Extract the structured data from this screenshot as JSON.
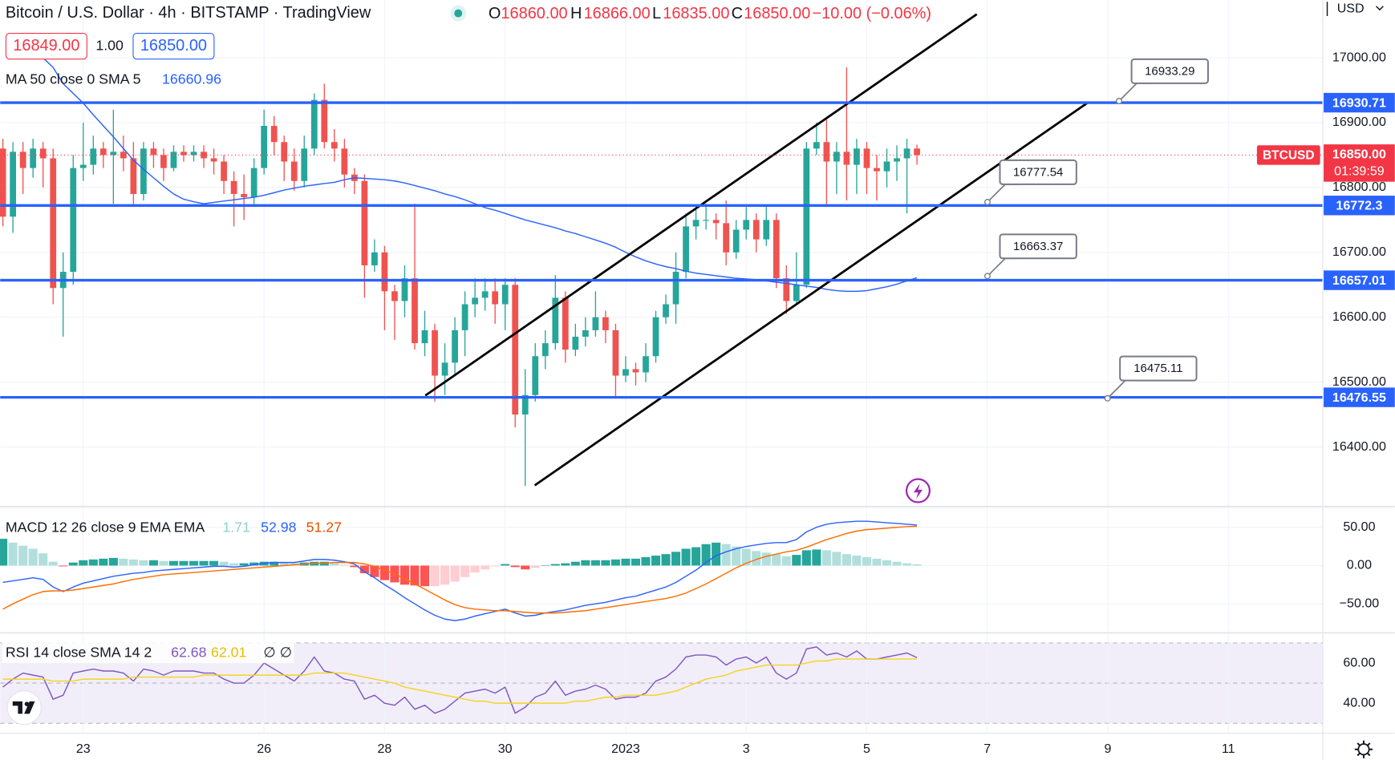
{
  "chart_data": {
    "type": "candlestick",
    "title": "Bitcoin / U.S. Dollar · 4h · BITSTAMP · TradingView",
    "ohlc_legend": [
      {
        "key": "O",
        "value": "16860.00"
      },
      {
        "key": "H",
        "value": "16866.00"
      },
      {
        "key": "L",
        "value": "16835.00"
      },
      {
        "key": "C",
        "value": "16850.00"
      }
    ],
    "change": "−10.00 (−0.06%)",
    "quote": {
      "bid": "16849.00",
      "size": "1.00",
      "ask": "16850.00"
    },
    "currency": "USD",
    "xlim": [
      -0.27,
      131.4
    ],
    "xticks": [
      {
        "value": 8,
        "label": "23"
      },
      {
        "value": 26,
        "label": "26"
      },
      {
        "value": 38,
        "label": "28"
      },
      {
        "value": 50,
        "label": "30"
      },
      {
        "value": 62,
        "label": "2023"
      },
      {
        "value": 74,
        "label": "3"
      },
      {
        "value": 86,
        "label": "5"
      },
      {
        "value": 98,
        "label": "7"
      },
      {
        "value": 110,
        "label": "9"
      },
      {
        "value": 122,
        "label": "11"
      }
    ],
    "ylim": [
      16308,
      17089
    ],
    "yticks": [
      {
        "value": 17000,
        "label": "17000.00"
      },
      {
        "value": 16900,
        "label": "16900.00"
      },
      {
        "value": 16800,
        "label": "16800.00"
      },
      {
        "value": 16700,
        "label": "16700.00"
      },
      {
        "value": 16600,
        "label": "16600.00"
      },
      {
        "value": 16500,
        "label": "16500.00"
      },
      {
        "value": 16400,
        "label": "16400.00"
      }
    ],
    "grid": true,
    "up_color": "#26a69a",
    "down_color": "#ef5350",
    "open": [
      16860,
      16755,
      16855,
      16830,
      16860,
      16845,
      16645,
      16670,
      16830,
      16835,
      16860,
      16850,
      16855,
      16845,
      16790,
      16860,
      16850,
      16830,
      16855,
      16850,
      16855,
      16845,
      16840,
      16810,
      16790,
      16785,
      16830,
      16895,
      16870,
      16840,
      16810,
      16860,
      16935,
      16870,
      16860,
      16820,
      16810,
      16680,
      16700,
      16640,
      16625,
      16660,
      16560,
      16580,
      16510,
      16530,
      16580,
      16620,
      16630,
      16640,
      16620,
      16650,
      16450,
      16480,
      16540,
      16560,
      16630,
      16550,
      16570,
      16580,
      16600,
      16580,
      16510,
      16520,
      16515,
      16540,
      16600,
      16620,
      16670,
      16740,
      16750,
      16750,
      16745,
      16700,
      16735,
      16750,
      16720,
      16750,
      16660,
      16625,
      16650,
      16860,
      16870,
      16840,
      16855,
      16835,
      16860,
      16830,
      16825,
      16840,
      16845,
      16860
    ],
    "high": [
      16875,
      16870,
      16870,
      16875,
      16870,
      16860,
      16700,
      16850,
      16900,
      16880,
      16870,
      16920,
      16880,
      16870,
      16870,
      16870,
      16860,
      16865,
      16865,
      16865,
      16865,
      16860,
      16850,
      16825,
      16820,
      16845,
      16920,
      16910,
      16880,
      16860,
      16880,
      16945,
      16960,
      16890,
      16875,
      16830,
      16820,
      16720,
      16710,
      16650,
      16680,
      16775,
      16610,
      16590,
      16560,
      16600,
      16640,
      16660,
      16660,
      16660,
      16660,
      16660,
      16520,
      16560,
      16580,
      16665,
      16640,
      16590,
      16600,
      16640,
      16610,
      16590,
      16540,
      16530,
      16560,
      16610,
      16635,
      16700,
      16760,
      16770,
      16775,
      16760,
      16780,
      16750,
      16770,
      16760,
      16770,
      16760,
      16680,
      16700,
      16870,
      16900,
      16905,
      16870,
      16985,
      16875,
      16870,
      16850,
      16860,
      16865,
      16875,
      16866
    ],
    "low": [
      16740,
      16730,
      16790,
      16815,
      16800,
      16620,
      16570,
      16650,
      16810,
      16820,
      16830,
      16775,
      16825,
      16770,
      16780,
      16830,
      16810,
      16825,
      16840,
      16840,
      16830,
      16820,
      16790,
      16740,
      16750,
      16770,
      16820,
      16850,
      16810,
      16795,
      16800,
      16850,
      16860,
      16840,
      16800,
      16790,
      16630,
      16670,
      16580,
      16565,
      16600,
      16550,
      16540,
      16470,
      16480,
      16510,
      16540,
      16600,
      16610,
      16590,
      16580,
      16430,
      16340,
      16470,
      16520,
      16550,
      16530,
      16540,
      16555,
      16570,
      16560,
      16475,
      16500,
      16495,
      16500,
      16530,
      16590,
      16590,
      16660,
      16720,
      16735,
      16720,
      16680,
      16690,
      16720,
      16700,
      16710,
      16645,
      16605,
      16620,
      16645,
      16850,
      16770,
      16790,
      16780,
      16790,
      16790,
      16780,
      16800,
      16810,
      16760,
      16835
    ],
    "close": [
      16755,
      16855,
      16830,
      16860,
      16845,
      16645,
      16670,
      16830,
      16835,
      16860,
      16850,
      16855,
      16845,
      16790,
      16860,
      16850,
      16830,
      16855,
      16850,
      16855,
      16845,
      16840,
      16810,
      16790,
      16785,
      16830,
      16895,
      16870,
      16840,
      16810,
      16860,
      16935,
      16870,
      16860,
      16820,
      16810,
      16680,
      16700,
      16640,
      16625,
      16660,
      16560,
      16580,
      16510,
      16530,
      16580,
      16620,
      16630,
      16640,
      16620,
      16650,
      16450,
      16480,
      16540,
      16560,
      16630,
      16550,
      16570,
      16580,
      16600,
      16580,
      16510,
      16520,
      16515,
      16540,
      16600,
      16620,
      16670,
      16740,
      16750,
      16750,
      16745,
      16700,
      16735,
      16750,
      16720,
      16750,
      16660,
      16625,
      16650,
      16860,
      16870,
      16840,
      16855,
      16835,
      16860,
      16830,
      16825,
      16840,
      16845,
      16860,
      16850
    ],
    "ma": {
      "label": "MA 50 close 0 SMA 5",
      "color": "#2962ff",
      "values": [
        null,
        null,
        null,
        null,
        17000,
        16985,
        16960,
        16945,
        16930,
        16912,
        16895,
        16878,
        16860,
        16842,
        16828,
        16815,
        16802,
        16790,
        16782,
        16778,
        16775,
        16777,
        16779,
        16781,
        16783,
        16785,
        16788,
        16792,
        16796,
        16799,
        16802,
        16804,
        16806,
        16808,
        16812,
        16815,
        16814,
        16813,
        16812,
        16810,
        16807,
        16803,
        16799,
        16795,
        16790,
        16786,
        16781,
        16775,
        16769,
        16765,
        16760,
        16755,
        16750,
        16746,
        16742,
        16738,
        16733,
        16729,
        16724,
        16719,
        16714,
        16708,
        16700,
        16693,
        16687,
        16682,
        16678,
        16675,
        16671,
        16668,
        16666,
        16664,
        16662,
        16660,
        16659,
        16658,
        16656,
        16654,
        16652,
        16650,
        16648,
        16646,
        16643,
        16641,
        16640,
        16640,
        16641,
        16644,
        16647,
        16651,
        16656,
        16660.96
      ]
    },
    "levels": [
      16930.71,
      16772.3,
      16657.01,
      16476.55
    ],
    "level_color": "#2962ff",
    "callouts": [
      16933.29,
      16777.54,
      16663.37,
      16475.11
    ],
    "last_price": {
      "symbol": "BTCUSD",
      "value": 16850,
      "label": "16850.00",
      "countdown": "01:39:59",
      "color": "#f23645"
    },
    "macd": {
      "label": "MACD 12 26 close 9 EMA EMA",
      "ylim": [
        -88,
        77
      ],
      "yticks": [
        {
          "value": 50,
          "label": "50.00"
        },
        {
          "value": 0,
          "label": "0.00"
        },
        {
          "value": -50,
          "label": "−50.00"
        }
      ],
      "macd_color": "#2962ff",
      "signal_color": "#ff6d00",
      "hist_colors": [
        "#26a69a",
        "#b2dfdb",
        "#ff5252",
        "#ffcdd2"
      ],
      "histogram": [
        35,
        30,
        26,
        22,
        16,
        5,
        -1,
        4,
        7,
        8,
        9,
        10,
        9,
        8,
        7,
        7,
        6,
        6,
        6,
        6,
        6,
        6,
        5,
        3,
        3,
        4,
        5,
        5,
        4,
        3,
        4,
        5,
        5,
        3,
        1,
        -2,
        -10,
        -15,
        -19,
        -22,
        -25,
        -26,
        -27,
        -27,
        -25,
        -21,
        -15,
        -9,
        -5,
        -1,
        2,
        -2,
        -5,
        -3,
        0,
        2,
        3,
        5,
        7,
        7,
        7,
        8,
        9,
        9,
        11,
        13,
        15,
        18,
        22,
        24,
        28,
        30,
        28,
        25,
        22,
        19,
        17,
        15,
        12,
        14,
        20,
        21,
        20,
        18,
        15,
        13,
        11,
        9,
        7,
        5,
        3,
        1.71
      ],
      "macd": [
        -22,
        -20,
        -18,
        -16,
        -18,
        -28,
        -34,
        -28,
        -23,
        -20,
        -17,
        -14,
        -12,
        -10,
        -9,
        -7,
        -6,
        -5,
        -4,
        -3,
        -2,
        -1,
        -1,
        -2,
        -1,
        1,
        3,
        4,
        4,
        4,
        6,
        8,
        8,
        7,
        5,
        2,
        -8,
        -16,
        -25,
        -33,
        -42,
        -50,
        -58,
        -65,
        -70,
        -72,
        -70,
        -66,
        -63,
        -60,
        -57,
        -62,
        -66,
        -65,
        -62,
        -60,
        -58,
        -55,
        -52,
        -50,
        -48,
        -45,
        -42,
        -40,
        -36,
        -32,
        -28,
        -22,
        -14,
        -6,
        4,
        13,
        18,
        22,
        25,
        27,
        29,
        30,
        30,
        34,
        44,
        50,
        54,
        56,
        57,
        58,
        58,
        57,
        56,
        55,
        54,
        52.98
      ],
      "signal": [
        -57,
        -50,
        -44,
        -38,
        -34,
        -33,
        -33,
        -32,
        -30,
        -28,
        -26,
        -24,
        -21,
        -18,
        -16,
        -14,
        -12,
        -11,
        -10,
        -9,
        -8,
        -7,
        -6,
        -5,
        -4,
        -3,
        -2,
        -1,
        0,
        1,
        2,
        3,
        3,
        4,
        4,
        4,
        2,
        -1,
        -6,
        -11,
        -17,
        -24,
        -31,
        -38,
        -45,
        -51,
        -55,
        -57,
        -58,
        -59,
        -59,
        -60,
        -61,
        -62,
        -62,
        -62,
        -61,
        -60,
        -59,
        -57,
        -55,
        -53,
        -51,
        -49,
        -47,
        -45,
        -43,
        -40,
        -36,
        -30,
        -24,
        -17,
        -10,
        -3,
        3,
        8,
        12,
        15,
        18,
        20,
        24,
        29,
        34,
        38,
        42,
        45,
        47,
        48,
        49,
        50,
        51,
        51.27
      ]
    },
    "rsi": {
      "label": "RSI 14 close SMA 14 2",
      "extra": "∅ ∅",
      "ylim": [
        25,
        75
      ],
      "yticks": [
        {
          "value": 60,
          "label": "60.00"
        },
        {
          "value": 40,
          "label": "40.00"
        }
      ],
      "levels": [
        70,
        50,
        30
      ],
      "rsi_color": "#7e57c2",
      "sma_color": "#f5d323",
      "rsi": [
        48,
        52,
        55,
        54,
        53,
        42,
        44,
        55,
        56,
        57,
        56,
        56,
        55,
        51,
        57,
        56,
        54,
        56,
        56,
        56,
        55,
        55,
        52,
        50,
        50,
        54,
        60,
        57,
        54,
        51,
        56,
        63,
        56,
        55,
        52,
        51,
        42,
        44,
        40,
        39,
        43,
        37,
        39,
        35,
        37,
        41,
        45,
        46,
        47,
        45,
        48,
        35,
        38,
        43,
        45,
        51,
        44,
        46,
        47,
        49,
        47,
        42,
        43,
        43,
        45,
        51,
        53,
        57,
        63,
        64,
        64,
        63,
        59,
        62,
        63,
        60,
        63,
        55,
        52,
        55,
        67,
        68,
        64,
        65,
        63,
        66,
        62,
        62,
        63,
        64,
        65,
        62.68
      ],
      "sma": [
        52,
        52,
        52,
        52,
        52,
        51,
        51,
        51,
        52,
        52,
        52,
        52,
        52,
        53,
        53,
        53,
        53,
        53,
        53,
        53,
        54,
        54,
        54,
        54,
        54,
        54,
        54,
        54,
        54,
        54,
        54,
        55,
        55,
        55,
        55,
        54,
        53,
        52,
        51,
        50,
        48,
        47,
        46,
        45,
        44,
        43,
        42,
        41,
        41,
        40,
        40,
        40,
        40,
        40,
        40,
        40,
        40,
        41,
        41,
        42,
        43,
        43,
        44,
        44,
        44,
        44,
        45,
        46,
        48,
        50,
        52,
        53,
        54,
        56,
        57,
        58,
        59,
        59,
        59,
        59,
        60,
        61,
        61,
        62,
        62,
        62,
        62,
        62,
        62,
        62,
        62,
        62.01
      ]
    }
  }
}
